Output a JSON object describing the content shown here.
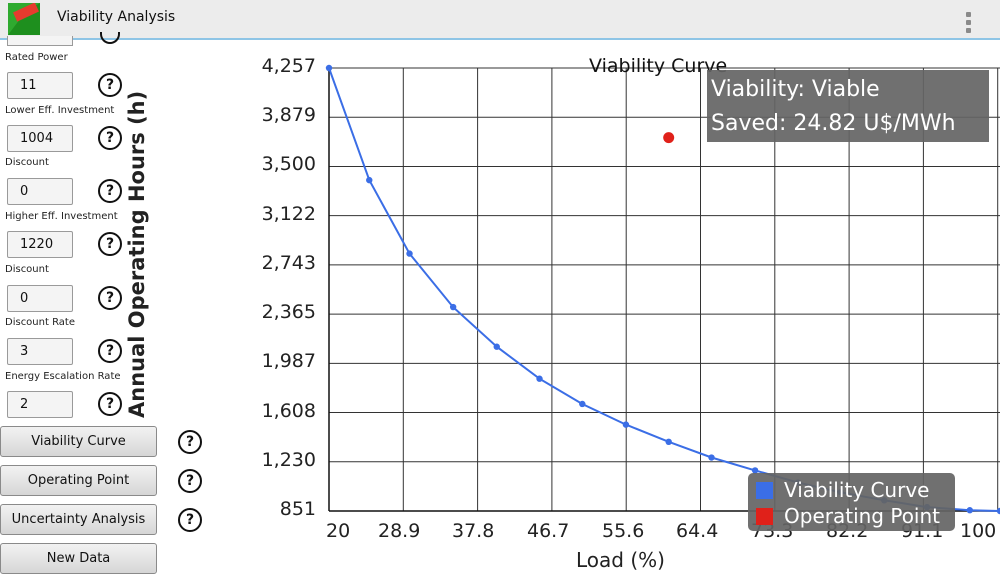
{
  "app": {
    "title": "Viability Analysis"
  },
  "colors": {
    "curve": "#3b6ee6",
    "operating_point": "#e0211a",
    "overlay": "#646464"
  },
  "sidebar": {
    "rated_power": {
      "label": "Rated Power",
      "value": "11"
    },
    "lower_investment": {
      "label": "Lower Eff. Investment",
      "value": "1004"
    },
    "lower_discount": {
      "label": "Discount",
      "value": "0"
    },
    "higher_investment": {
      "label": "Higher Eff. Investment",
      "value": "1220"
    },
    "higher_discount": {
      "label": "Discount",
      "value": "0"
    },
    "discount_rate": {
      "label": "Discount Rate",
      "value": "3"
    },
    "energy_escalation": {
      "label": "Energy Escalation Rate",
      "value": "2"
    },
    "help_symbol": "?",
    "buttons": {
      "viability_curve": "Viability Curve",
      "operating_point": "Operating Point",
      "uncertainty": "Uncertainty Analysis",
      "new_data": "New Data"
    }
  },
  "info": {
    "viability": "Viability: Viable",
    "saved": "Saved: 24.82 U$/MWh"
  },
  "chart_data": {
    "type": "line",
    "title": "Viability Curve",
    "xlabel": "Load (%)",
    "ylabel": "Annual Operating Hours (h)",
    "xlim": [
      20,
      100
    ],
    "ylim": [
      851,
      4257
    ],
    "x_ticks": [
      "20",
      "28.9",
      "37.8",
      "46.7",
      "55.6",
      "64.4",
      "73.3",
      "82.2",
      "91.1",
      "100"
    ],
    "y_ticks": [
      "4,257",
      "3,879",
      "3,500",
      "3,122",
      "2,743",
      "2,365",
      "1,987",
      "1,608",
      "1,230",
      "851"
    ],
    "grid": true,
    "legend_position": "bottom-right",
    "series": [
      {
        "name": "Viability Curve",
        "x": [
          20,
          24.8,
          29.6,
          34.8,
          40.0,
          45.1,
          50.2,
          55.4,
          60.5,
          65.6,
          70.8,
          75.9,
          81.0,
          86.2,
          91.3,
          96.4,
          100
        ],
        "y": [
          4257,
          3395,
          2830,
          2419,
          2114,
          1868,
          1674,
          1515,
          1383,
          1262,
          1163,
          1070,
          995,
          933,
          881,
          857,
          851
        ]
      },
      {
        "name": "Operating Point",
        "x": [
          60.5
        ],
        "y": [
          3722
        ]
      }
    ]
  }
}
